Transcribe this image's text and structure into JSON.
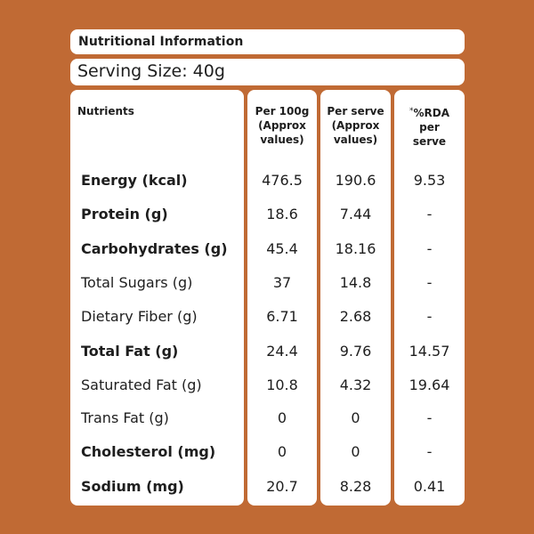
{
  "title": "Nutritional Information",
  "serving_size": "Serving Size: 40g",
  "headers": {
    "nutrients": "Nutrients",
    "per100_line1": "Per 100g",
    "per100_line2": "(Approx",
    "per100_line3": "values)",
    "perserve_line1": "Per serve",
    "perserve_line2": "(Approx",
    "perserve_line3": "values)",
    "rda_star": "*",
    "rda_line1": "%RDA",
    "rda_line2": "per",
    "rda_line3": "serve"
  },
  "rows": [
    {
      "name": "Energy (kcal)",
      "per100": "476.5",
      "perserve": "190.6",
      "rda": "9.53",
      "bold": true
    },
    {
      "name": "Protein (g)",
      "per100": "18.6",
      "perserve": "7.44",
      "rda": "-",
      "bold": true
    },
    {
      "name": "Carbohydrates (g)",
      "per100": "45.4",
      "perserve": "18.16",
      "rda": "-",
      "bold": true
    },
    {
      "name": "Total Sugars (g)",
      "per100": "37",
      "perserve": "14.8",
      "rda": "-",
      "bold": false
    },
    {
      "name": "Dietary Fiber (g)",
      "per100": "6.71",
      "perserve": "2.68",
      "rda": "-",
      "bold": false
    },
    {
      "name": "Total Fat (g)",
      "per100": "24.4",
      "perserve": "9.76",
      "rda": "14.57",
      "bold": true
    },
    {
      "name": "Saturated Fat (g)",
      "per100": "10.8",
      "perserve": "4.32",
      "rda": "19.64",
      "bold": false
    },
    {
      "name": "Trans Fat (g)",
      "per100": "0",
      "perserve": "0",
      "rda": "-",
      "bold": false
    },
    {
      "name": "Cholesterol (mg)",
      "per100": "0",
      "perserve": "0",
      "rda": "-",
      "bold": true
    },
    {
      "name": "Sodium (mg)",
      "per100": "20.7",
      "perserve": "8.28",
      "rda": "0.41",
      "bold": true
    }
  ],
  "colors": {
    "background": "#c06a34",
    "panel": "#ffffff",
    "text": "#1e1e1e"
  }
}
